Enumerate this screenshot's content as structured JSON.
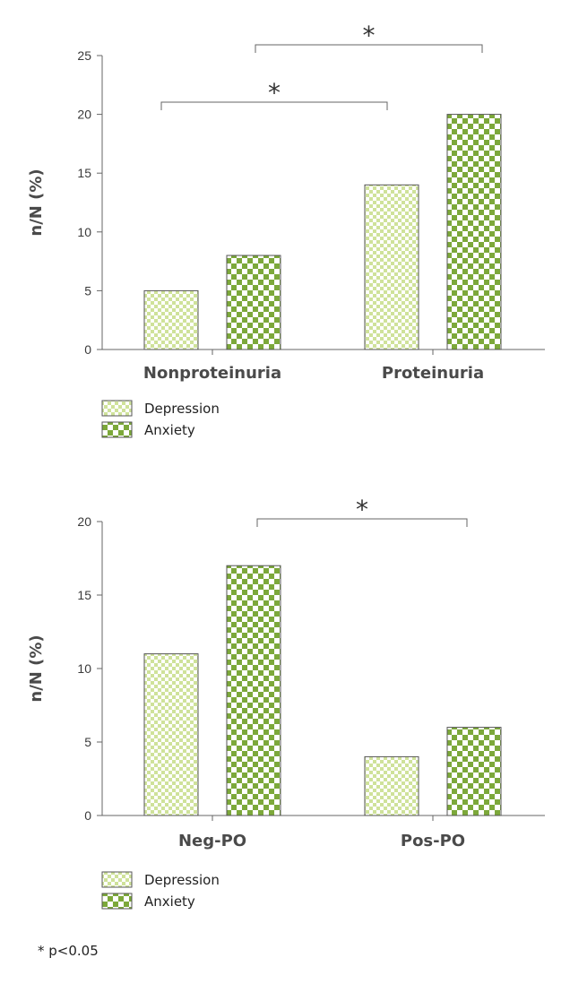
{
  "chart_data": [
    {
      "type": "bar",
      "categories": [
        "Nonproteinuria",
        "Proteinuria"
      ],
      "series": [
        {
          "name": "Depression",
          "values": [
            5,
            14
          ]
        },
        {
          "name": "Anxiety",
          "values": [
            8,
            20
          ]
        }
      ],
      "ylabel": "n/N  (%)",
      "xlabel": "",
      "ylim": [
        0,
        25
      ],
      "yticks": [
        0,
        5,
        10,
        15,
        20,
        25
      ],
      "legend": "bottom-left",
      "grid": false,
      "annotations": [
        {
          "text": "*",
          "between": [
            "Depression:Nonproteinuria",
            "Depression:Proteinuria"
          ]
        },
        {
          "text": "*",
          "between": [
            "Anxiety:Nonproteinuria",
            "Anxiety:Proteinuria"
          ]
        }
      ]
    },
    {
      "type": "bar",
      "categories": [
        "Neg-PO",
        "Pos-PO"
      ],
      "series": [
        {
          "name": "Depression",
          "values": [
            11,
            4
          ]
        },
        {
          "name": "Anxiety",
          "values": [
            17,
            6
          ]
        }
      ],
      "ylabel": "n/N  (%)",
      "xlabel": "",
      "ylim": [
        0,
        20
      ],
      "yticks": [
        0,
        5,
        10,
        15,
        20
      ],
      "legend": "bottom-left",
      "grid": false,
      "annotations": [
        {
          "text": "*",
          "between": [
            "Anxiety:Neg-PO",
            "Anxiety:Pos-PO"
          ]
        }
      ]
    }
  ],
  "colors": {
    "depression_fill": "#cfe29a",
    "anxiety_fill": "#7ca83a",
    "bar_outline": "#555555",
    "axis": "#666666"
  },
  "footnote": "* p<0.05"
}
